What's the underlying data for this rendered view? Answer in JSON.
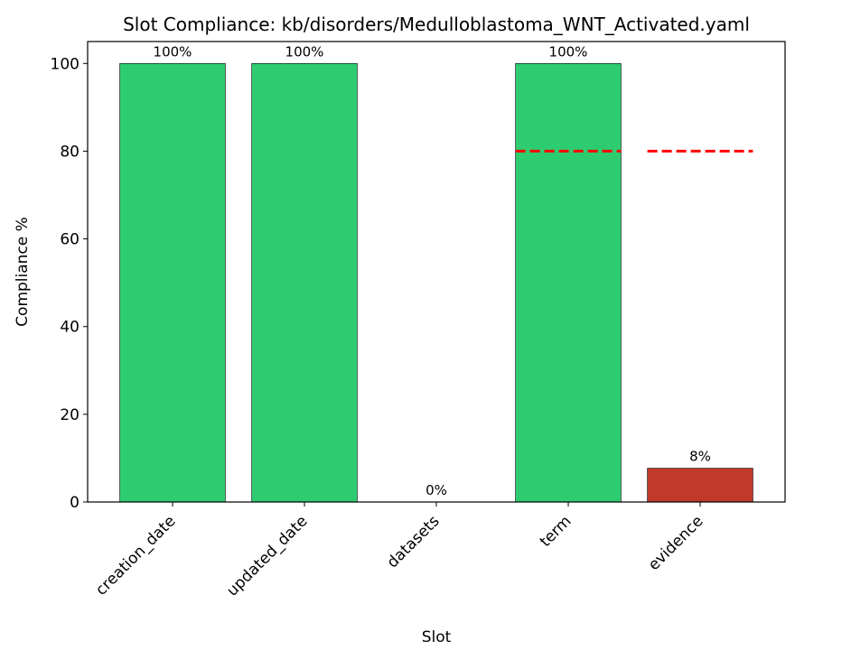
{
  "chart_data": {
    "type": "bar",
    "title": "Slot Compliance: kb/disorders/Medulloblastoma_WNT_Activated.yaml",
    "x_label": "Slot",
    "y_label": "Compliance %",
    "categories": [
      "creation_date",
      "updated_date",
      "datasets",
      "term",
      "evidence"
    ],
    "values": [
      100,
      100,
      0,
      100,
      7.7
    ],
    "value_labels": [
      "100%",
      "100%",
      "0%",
      "100%",
      "8%"
    ],
    "colors": [
      "#2ecc71",
      "#2ecc71",
      "#2ecc71",
      "#2ecc71",
      "#c0392b"
    ],
    "thresholds": [
      null,
      null,
      null,
      80,
      80
    ],
    "threshold_color": "#ff0000",
    "ylim": [
      0,
      105
    ],
    "yticks": [
      0,
      20,
      40,
      60,
      80,
      100
    ],
    "grid": false
  }
}
